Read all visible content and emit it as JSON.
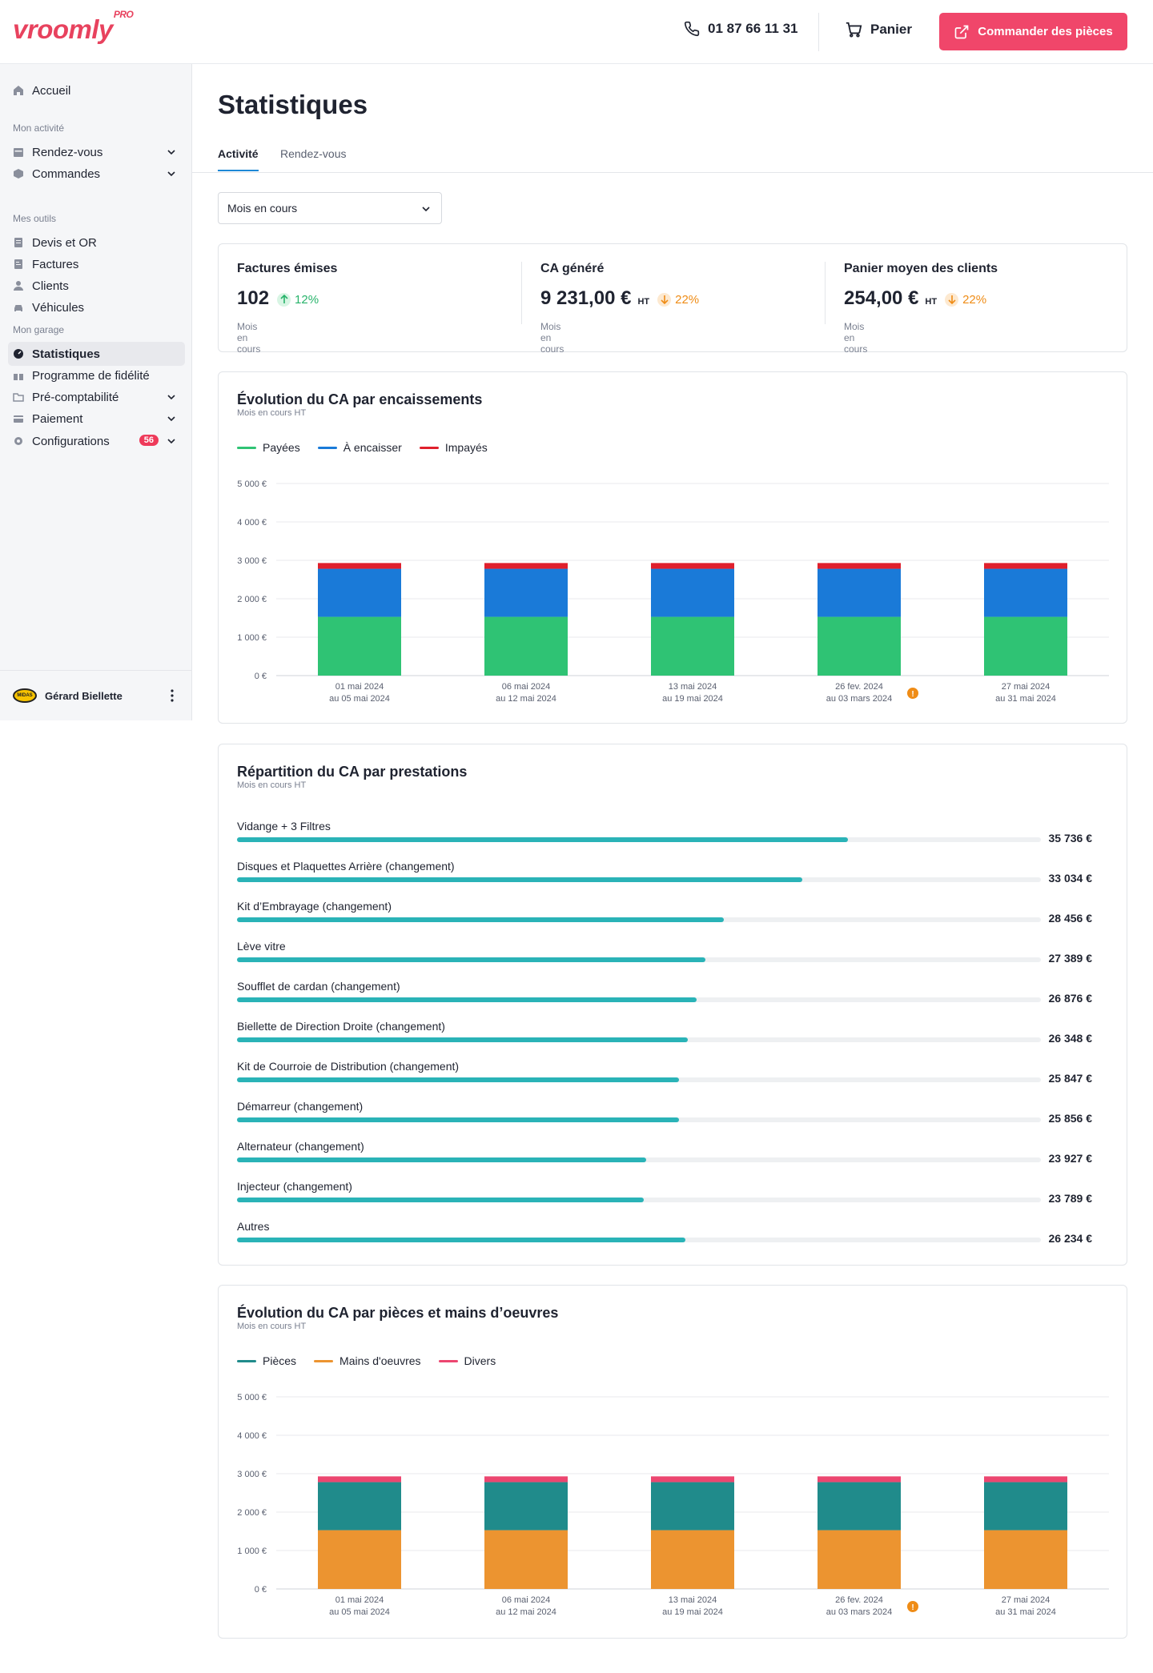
{
  "header": {
    "logo": "vroomly",
    "logo_suffix": "PRO",
    "phone": "01 87 66 11 31",
    "cart_label": "Panier",
    "order_button": "Commander des pièces"
  },
  "sidebar": {
    "home": "Accueil",
    "section_activity": "Mon activité",
    "appointments": "Rendez-vous",
    "orders": "Commandes",
    "section_tools": "Mes outils",
    "quotes": "Devis et OR",
    "invoices": "Factures",
    "clients": "Clients",
    "vehicles": "Véhicules",
    "section_garage": "Mon garage",
    "statistics": "Statistiques",
    "loyalty": "Programme de fidélité",
    "precompta": "Pré-comptabilité",
    "payment": "Paiement",
    "configurations": "Configurations",
    "config_badge": "56",
    "user_name": "Gérard Biellette",
    "user_logo": "MIDAS"
  },
  "main": {
    "title": "Statistiques",
    "tab_activity": "Activité",
    "tab_appointments": "Rendez-vous",
    "period_select": "Mois en cours"
  },
  "kpis": [
    {
      "title": "Factures émises",
      "value": "102",
      "ht": "",
      "trend": "12%",
      "direction": "up",
      "sub": "Mois en cours"
    },
    {
      "title": "CA généré",
      "value": "9 231,00 €",
      "ht": "HT",
      "trend": "22%",
      "direction": "down",
      "sub": "Mois en cours"
    },
    {
      "title": "Panier moyen des clients",
      "value": "254,00 €",
      "ht": "HT",
      "trend": "22%",
      "direction": "down",
      "sub": "Mois en cours"
    }
  ],
  "chart1_card": {
    "title": "Évolution du CA par encaissements",
    "subtitle": "Mois en cours HT"
  },
  "chart3_card": {
    "title": "Évolution du CA par pièces et mains d’oeuvres",
    "subtitle": "Mois en cours HT"
  },
  "chart_data": [
    {
      "type": "bar",
      "stacked": true,
      "title": "Évolution du CA par encaissements",
      "categories": [
        [
          "01 mai 2024",
          "au 05 mai 2024"
        ],
        [
          "06 mai 2024",
          "au 12 mai 2024"
        ],
        [
          "13 mai 2024",
          "au 19 mai 2024"
        ],
        [
          "26 fev. 2024",
          "au 03 mars 2024"
        ],
        [
          "27 mai 2024",
          "au 31 mai 2024"
        ]
      ],
      "warning_category_index": 3,
      "series": [
        {
          "name": "Payées",
          "color": "#2fc374",
          "values": [
            1530,
            1530,
            1530,
            1530,
            1530
          ]
        },
        {
          "name": "À encaisser",
          "color": "#1a7ad8",
          "values": [
            1250,
            1250,
            1250,
            1250,
            1250
          ]
        },
        {
          "name": "Impayés",
          "color": "#e0202c",
          "values": [
            150,
            150,
            150,
            150,
            150
          ]
        }
      ],
      "yticks": [
        "0 €",
        "1 000 €",
        "2 000 €",
        "3 000 €",
        "4 000 €",
        "5 000 €"
      ],
      "ylim": [
        0,
        5000
      ],
      "grid": true,
      "legend": "top-left"
    },
    {
      "type": "bar",
      "orientation": "horizontal",
      "title": "Répartition du CA par prestations",
      "subtitle": "Mois en cours HT",
      "max": 47000,
      "items": [
        {
          "label": "Vidange + 3 Filtres",
          "value": 35736,
          "display": "35 736 €"
        },
        {
          "label": "Disques et Plaquettes Arrière (changement)",
          "value": 33034,
          "display": "33 034 €"
        },
        {
          "label": "Kit d’Embrayage (changement)",
          "value": 28456,
          "display": "28 456 €"
        },
        {
          "label": "Lève vitre",
          "value": 27389,
          "display": "27 389 €"
        },
        {
          "label": "Soufflet de cardan (changement)",
          "value": 26876,
          "display": "26 876 €"
        },
        {
          "label": "Biellette de Direction Droite (changement)",
          "value": 26348,
          "display": "26 348 €"
        },
        {
          "label": "Kit de Courroie de Distribution (changement)",
          "value": 25847,
          "display": "25 847 €"
        },
        {
          "label": "Démarreur (changement)",
          "value": 25856,
          "display": "25 856 €"
        },
        {
          "label": "Alternateur (changement)",
          "value": 23927,
          "display": "23 927 €"
        },
        {
          "label": "Injecteur (changement)",
          "value": 23789,
          "display": "23 789 €"
        },
        {
          "label": "Autres",
          "value": 26234,
          "display": "26 234 €"
        }
      ]
    },
    {
      "type": "bar",
      "stacked": true,
      "title": "Évolution du CA par pièces et mains d’oeuvres",
      "categories": [
        [
          "01 mai 2024",
          "au 05 mai 2024"
        ],
        [
          "06 mai 2024",
          "au 12 mai 2024"
        ],
        [
          "13 mai 2024",
          "au 19 mai 2024"
        ],
        [
          "26 fev. 2024",
          "au 03 mars 2024"
        ],
        [
          "27 mai 2024",
          "au 31 mai 2024"
        ]
      ],
      "warning_category_index": 3,
      "series": [
        {
          "name": "Mains d'oeuvres",
          "color": "#ec9430",
          "values": [
            1530,
            1530,
            1530,
            1530,
            1530
          ]
        },
        {
          "name": "Pièces",
          "color": "#208b8b",
          "values": [
            1250,
            1250,
            1250,
            1250,
            1250
          ]
        },
        {
          "name": "Divers",
          "color": "#ec4670",
          "values": [
            150,
            150,
            150,
            150,
            150
          ]
        }
      ],
      "legend_order": [
        "Pièces",
        "Mains d'oeuvres",
        "Divers"
      ],
      "yticks": [
        "0 €",
        "1 000 €",
        "2 000 €",
        "3 000 €",
        "4 000 €",
        "5 000 €"
      ],
      "ylim": [
        0,
        5000
      ],
      "grid": true,
      "legend": "top-left"
    }
  ]
}
